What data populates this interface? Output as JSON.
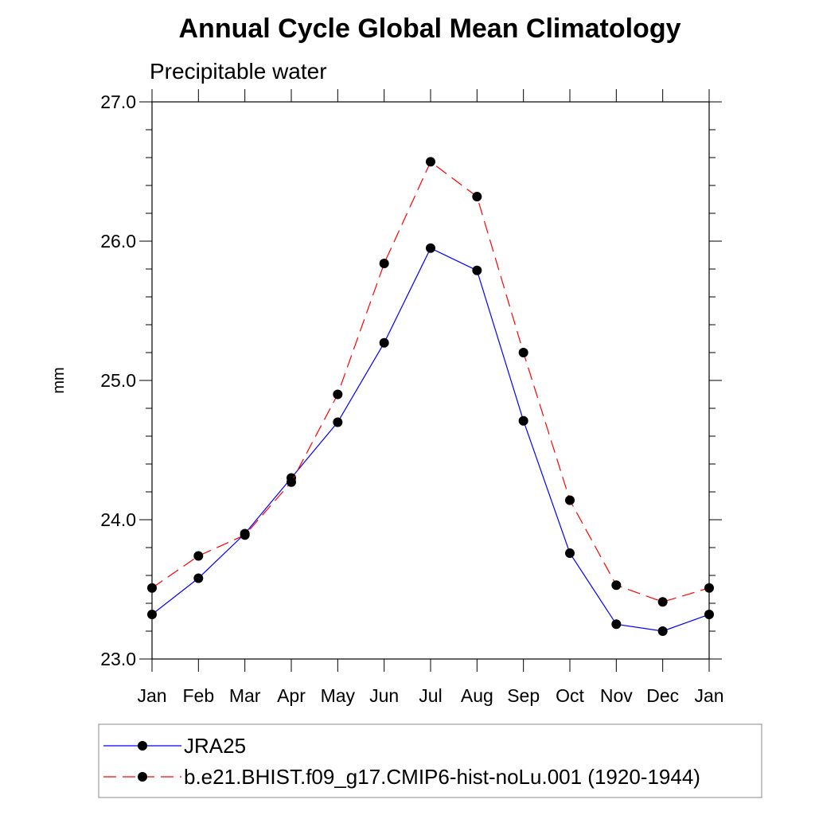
{
  "chart_data": {
    "type": "line",
    "title": "Annual Cycle Global Mean Climatology",
    "subtitle": "Precipitable water",
    "xlabel": "",
    "ylabel": "mm",
    "categories": [
      "Jan",
      "Feb",
      "Mar",
      "Apr",
      "May",
      "Jun",
      "Jul",
      "Aug",
      "Sep",
      "Oct",
      "Nov",
      "Dec",
      "Jan"
    ],
    "ylim": [
      23.0,
      27.0
    ],
    "yticks": [
      23.0,
      24.0,
      25.0,
      26.0,
      27.0
    ],
    "ytick_labels": [
      "23.0",
      "24.0",
      "25.0",
      "26.0",
      "27.0"
    ],
    "legend_position": "bottom",
    "series": [
      {
        "name": "JRA25",
        "color": "#0000ff",
        "style": "solid",
        "values": [
          23.32,
          23.58,
          23.9,
          24.3,
          24.7,
          25.27,
          25.95,
          25.79,
          24.71,
          23.76,
          23.25,
          23.2,
          23.32
        ]
      },
      {
        "name": "b.e21.BHIST.f09_g17.CMIP6-hist-noLu.001 (1920-1944)",
        "color": "#ff0000",
        "style": "dashed",
        "values": [
          23.51,
          23.74,
          23.89,
          24.27,
          24.9,
          25.84,
          26.57,
          26.32,
          25.2,
          24.14,
          23.53,
          23.41,
          23.51
        ]
      }
    ]
  }
}
